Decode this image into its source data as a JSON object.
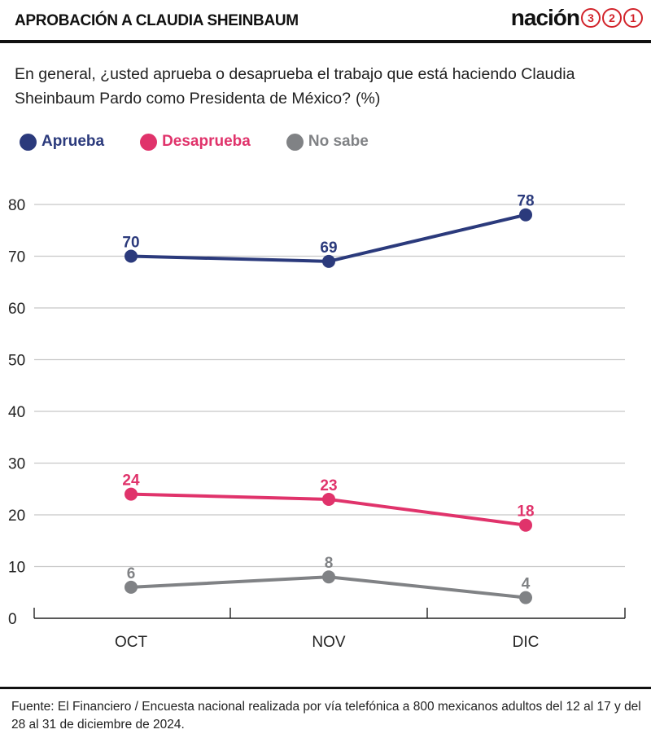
{
  "header": {
    "title": "APROBACIÓN A CLAUDIA SHEINBAUM",
    "brand_word": "nación",
    "brand_digits": [
      "3",
      "2",
      "1"
    ]
  },
  "question": {
    "text": "En general, ¿usted aprueba o desaprueba el trabajo que está haciendo Claudia Sheinbaum Pardo como Presidenta de México?",
    "unit": "(%)"
  },
  "chart_data": {
    "type": "line",
    "categories": [
      "OCT",
      "NOV",
      "DIC"
    ],
    "y_ticks": [
      0,
      10,
      20,
      30,
      40,
      50,
      60,
      70,
      80
    ],
    "ylim": [
      0,
      80
    ],
    "grid": true,
    "legend_position": "top-left",
    "series": [
      {
        "name": "Aprueba",
        "color": "#2b3a7c",
        "values": [
          70,
          69,
          78
        ]
      },
      {
        "name": "Desaprueba",
        "color": "#e0336b",
        "values": [
          24,
          23,
          18
        ]
      },
      {
        "name": "No sabe",
        "color": "#808285",
        "values": [
          6,
          8,
          4
        ]
      }
    ]
  },
  "source": {
    "text": "Fuente: El Financiero / Encuesta nacional realizada por vía telefónica a 800 mexicanos adultos del 12 al 17 y del 28 al 31 de diciembre de 2024."
  }
}
